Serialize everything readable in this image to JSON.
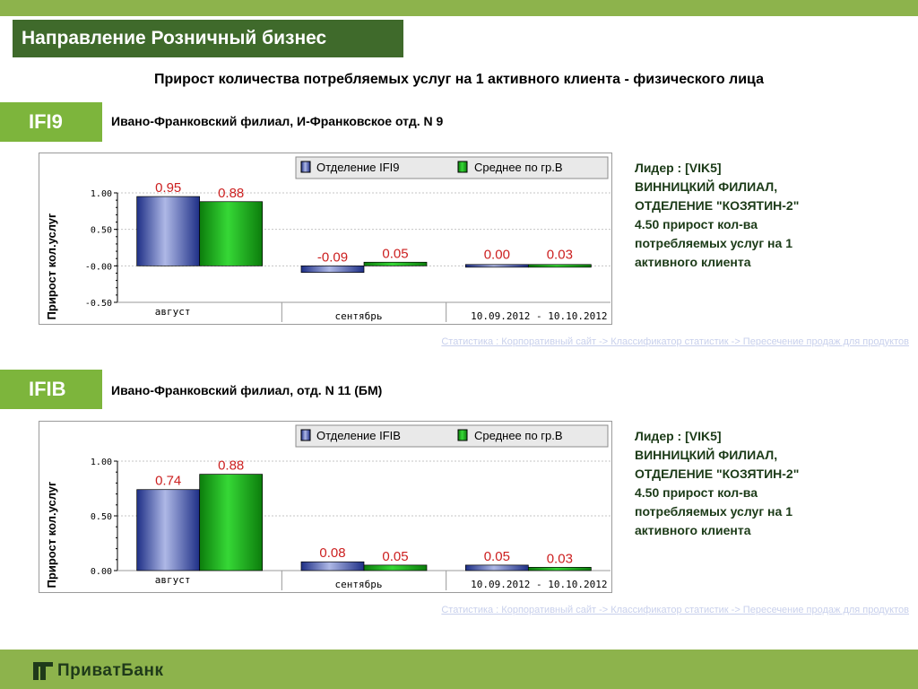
{
  "header": {
    "title": "Направление Розничный бизнес"
  },
  "subtitle": "Прирост количества потребляемых услуг на 1 активного клиента - физического лица",
  "colors": {
    "series1": "#2b3f9a",
    "series2": "#16a016",
    "accent": "#7db53c",
    "band": "#8db34c",
    "title_bg": "#3f6a2b"
  },
  "sections": [
    {
      "code": "IFI9",
      "branch": "Ивано-Франковский филиал, И-Франковское отд. N 9",
      "leader": [
        "Лидер : [VIK5]",
        "ВИННИЦКИЙ ФИЛИАЛ,",
        "ОТДЕЛЕНИЕ \"КОЗЯТИН-2\"",
        "4.50 прирост кол-ва",
        "потребляемых услуг на 1",
        "активного клиента"
      ],
      "link": "Статистика : Корпоративный сайт -> Классификатор статистик -> Пересечение продаж для продуктов",
      "chart_data": {
        "type": "bar",
        "categories": [
          "август",
          "сентябрь",
          "10.09.2012 - 10.10.2012"
        ],
        "series": [
          {
            "name": "Отделение IFI9",
            "values": [
              0.95,
              -0.09,
              0.0
            ],
            "labels": [
              "0.95",
              "-0.09",
              "0.00"
            ]
          },
          {
            "name": "Среднее по гр.В",
            "values": [
              0.88,
              0.05,
              0.03
            ],
            "labels": [
              "0.88",
              "0.05",
              "0.03"
            ]
          }
        ],
        "ylabel": "Прирост кол.услуг",
        "yticks": [
          1.0,
          0.5,
          0.0,
          -0.5
        ],
        "ytick_labels": [
          "1.00",
          "0.50",
          "-0.00",
          "-0.50"
        ],
        "ylim": [
          -0.5,
          1.0
        ],
        "legend": "top-right",
        "grid": true
      }
    },
    {
      "code": "IFIB",
      "branch": "Ивано-Франковский филиал, отд. N 11 (БМ)",
      "leader": [
        "Лидер : [VIK5]",
        "ВИННИЦКИЙ ФИЛИАЛ,",
        "ОТДЕЛЕНИЕ \"КОЗЯТИН-2\"",
        "4.50 прирост кол-ва",
        "потребляемых услуг на 1",
        "активного клиента"
      ],
      "link": "Статистика : Корпоративный сайт -> Классификатор статистик -> Пересечение продаж для продуктов",
      "chart_data": {
        "type": "bar",
        "categories": [
          "август",
          "сентябрь",
          "10.09.2012 - 10.10.2012"
        ],
        "series": [
          {
            "name": "Отделение IFIB",
            "values": [
              0.74,
              0.08,
              0.05
            ],
            "labels": [
              "0.74",
              "0.08",
              "0.05"
            ]
          },
          {
            "name": "Среднее по гр.В",
            "values": [
              0.88,
              0.05,
              0.03
            ],
            "labels": [
              "0.88",
              "0.05",
              "0.03"
            ]
          }
        ],
        "ylabel": "Прирост кол.услуг",
        "yticks": [
          1.0,
          0.5,
          0.0
        ],
        "ytick_labels": [
          "1.00",
          "0.50",
          "0.00"
        ],
        "ylim": [
          0.0,
          1.0
        ],
        "legend": "top-right",
        "grid": true
      }
    }
  ],
  "footer": {
    "logo": "ПриватБанк"
  }
}
